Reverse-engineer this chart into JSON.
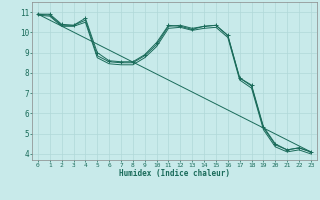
{
  "title": "",
  "xlabel": "Humidex (Indice chaleur)",
  "ylabel": "",
  "background_color": "#c8eaea",
  "grid_color": "#b0d8d8",
  "line_color": "#1a6b5a",
  "xlim": [
    -0.5,
    23.5
  ],
  "ylim": [
    3.7,
    11.5
  ],
  "xtick_values": [
    0,
    1,
    2,
    3,
    4,
    5,
    6,
    7,
    8,
    9,
    10,
    11,
    12,
    13,
    14,
    15,
    16,
    17,
    18,
    19,
    20,
    21,
    22,
    23
  ],
  "ytick_values": [
    4,
    5,
    6,
    7,
    8,
    9,
    10,
    11
  ],
  "series": [
    {
      "x": [
        0,
        1,
        2,
        3,
        4,
        5,
        6,
        7,
        8,
        9,
        10,
        11,
        12,
        13,
        14,
        15,
        16,
        17,
        18,
        19,
        20,
        21,
        22,
        23
      ],
      "y": [
        10.9,
        10.9,
        10.4,
        10.35,
        10.7,
        9.0,
        8.6,
        8.55,
        8.55,
        8.9,
        9.5,
        10.35,
        10.3,
        10.15,
        10.3,
        10.35,
        9.85,
        7.75,
        7.4,
        5.35,
        4.5,
        4.2,
        4.3,
        4.1
      ],
      "marker": true
    },
    {
      "x": [
        0,
        1,
        2,
        3,
        4,
        5,
        6,
        7,
        8,
        9,
        10,
        11,
        12,
        13,
        14,
        15,
        16,
        17,
        18,
        19,
        20,
        21,
        22,
        23
      ],
      "y": [
        10.9,
        10.85,
        10.35,
        10.35,
        10.6,
        8.85,
        8.55,
        8.5,
        8.5,
        8.85,
        9.4,
        10.3,
        10.35,
        10.2,
        10.3,
        10.35,
        9.85,
        7.75,
        7.35,
        5.3,
        4.45,
        4.2,
        4.3,
        4.1
      ],
      "marker": false
    },
    {
      "x": [
        0,
        1,
        2,
        3,
        4,
        5,
        6,
        7,
        8,
        9,
        10,
        11,
        12,
        13,
        14,
        15,
        16,
        17,
        18,
        19,
        20,
        21,
        22,
        23
      ],
      "y": [
        10.85,
        10.8,
        10.3,
        10.3,
        10.5,
        8.75,
        8.45,
        8.4,
        8.4,
        8.75,
        9.3,
        10.2,
        10.25,
        10.1,
        10.2,
        10.25,
        9.75,
        7.65,
        7.25,
        5.2,
        4.35,
        4.1,
        4.2,
        4.0
      ],
      "marker": false
    },
    {
      "x": [
        0,
        23
      ],
      "y": [
        10.9,
        4.1
      ],
      "marker": false
    }
  ]
}
